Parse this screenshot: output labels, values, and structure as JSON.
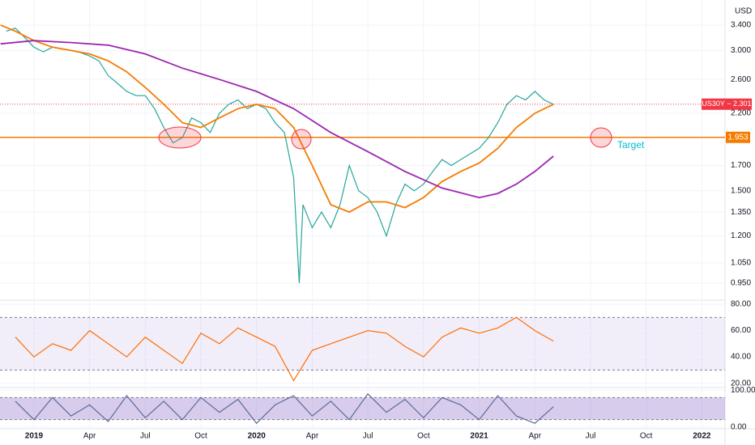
{
  "chart_data": [
    {
      "type": "line",
      "log_scale": true,
      "currency": "USD",
      "ylim": [
        0.877,
        3.85
      ],
      "yticks": [
        {
          "value": 3.4,
          "label": "3.400"
        },
        {
          "value": 3,
          "label": "3.000"
        },
        {
          "value": 2.6,
          "label": "2.600"
        },
        {
          "value": 2.2,
          "label": "2.200"
        },
        {
          "value": 1.7,
          "label": "1.700"
        },
        {
          "value": 1.5,
          "label": "1.500"
        },
        {
          "value": 1.35,
          "label": "1.350"
        },
        {
          "value": 1.2,
          "label": "1.200"
        },
        {
          "value": 1.05,
          "label": "1.050"
        },
        {
          "value": 0.95,
          "label": "0.950"
        }
      ],
      "xlim": [
        -1.83,
        37.25
      ],
      "xticks": [
        {
          "value": 0,
          "label": "2019"
        },
        {
          "value": 3,
          "label": "Apr"
        },
        {
          "value": 6,
          "label": "Jul"
        },
        {
          "value": 9,
          "label": "Oct"
        },
        {
          "value": 12,
          "label": "2020"
        },
        {
          "value": 15,
          "label": "Apr"
        },
        {
          "value": 18,
          "label": "Jul"
        },
        {
          "value": 21,
          "label": "Oct"
        },
        {
          "value": 24,
          "label": "2021"
        },
        {
          "value": 27,
          "label": "Apr"
        },
        {
          "value": 30,
          "label": "Jul"
        },
        {
          "value": 33,
          "label": "Oct"
        },
        {
          "value": 36,
          "label": "2022"
        }
      ],
      "series": [
        {
          "color": "#26a69a",
          "x": [
            -1.5,
            -1,
            -0.5,
            0,
            0.5,
            1,
            1.5,
            2,
            2.5,
            3,
            3.5,
            4,
            4.5,
            5,
            5.5,
            6,
            6.5,
            7,
            7.5,
            8,
            8.5,
            9,
            9.5,
            10,
            10.5,
            11,
            11.5,
            12,
            12.5,
            13,
            13.5,
            14,
            14.3,
            14.5,
            15,
            15.5,
            16,
            16.5,
            17,
            17.5,
            18,
            18.5,
            19,
            19.5,
            20,
            20.5,
            21,
            21.5,
            22,
            22.5,
            23,
            23.5,
            24,
            24.5,
            25,
            25.5,
            26,
            26.5,
            27,
            27.5,
            28
          ],
          "values": [
            3.3,
            3.35,
            3.2,
            3.05,
            2.98,
            3.05,
            3.02,
            3,
            2.97,
            2.92,
            2.85,
            2.65,
            2.55,
            2.45,
            2.4,
            2.4,
            2.25,
            2.05,
            1.9,
            1.95,
            2.15,
            2.1,
            2,
            2.2,
            2.3,
            2.35,
            2.25,
            2.3,
            2.25,
            2.1,
            2,
            1.6,
            0.95,
            1.4,
            1.25,
            1.35,
            1.25,
            1.4,
            1.7,
            1.5,
            1.45,
            1.35,
            1.2,
            1.4,
            1.55,
            1.5,
            1.55,
            1.65,
            1.75,
            1.7,
            1.75,
            1.8,
            1.85,
            1.95,
            2.1,
            2.3,
            2.4,
            2.35,
            2.45,
            2.35,
            2.3
          ]
        },
        {
          "color": "#f57c00",
          "x": [
            -1.8,
            -1,
            0,
            1,
            2,
            3,
            4,
            5,
            6,
            7,
            8,
            9,
            10,
            11,
            12,
            13,
            14,
            15,
            16,
            17,
            18,
            19,
            20,
            21,
            22,
            23,
            24,
            25,
            26,
            27,
            28
          ],
          "values": [
            3.4,
            3.3,
            3.15,
            3.05,
            3,
            2.95,
            2.85,
            2.7,
            2.5,
            2.3,
            2.1,
            2.05,
            2.15,
            2.25,
            2.3,
            2.25,
            2.05,
            1.7,
            1.4,
            1.35,
            1.42,
            1.42,
            1.38,
            1.45,
            1.57,
            1.65,
            1.72,
            1.85,
            2.05,
            2.2,
            2.3
          ]
        },
        {
          "color": "#9c27b0",
          "x": [
            -1.8,
            0,
            2,
            4,
            6,
            8,
            10,
            12,
            14,
            16,
            18,
            20,
            22,
            24,
            25,
            26,
            27,
            28
          ],
          "values": [
            3.1,
            3.15,
            3.12,
            3.08,
            2.95,
            2.75,
            2.6,
            2.45,
            2.25,
            2,
            1.82,
            1.65,
            1.52,
            1.45,
            1.48,
            1.55,
            1.65,
            1.78
          ]
        }
      ],
      "last_price": {
        "value": 2.301,
        "label": "US30Y − 2.301",
        "color": "#f23645"
      },
      "level": {
        "value": 1.953,
        "color": "#f57c00"
      },
      "annotation": "Target"
    },
    {
      "type": "line",
      "ylim": [
        17.3,
        82.5
      ],
      "yticks": [
        {
          "value": 80,
          "label": "80.00"
        },
        {
          "value": 60,
          "label": "60.00"
        },
        {
          "value": 40,
          "label": "40.00"
        },
        {
          "value": 20,
          "label": "20.00"
        }
      ],
      "band": [
        30,
        70
      ],
      "series": [
        {
          "color": "#ff6d00",
          "x": [
            -1,
            0,
            1,
            2,
            3,
            4,
            5,
            6,
            7,
            8,
            9,
            10,
            11,
            12,
            13,
            14,
            15,
            16,
            17,
            18,
            19,
            20,
            21,
            22,
            23,
            24,
            25,
            26,
            27,
            28
          ],
          "values": [
            55,
            40,
            50,
            45,
            60,
            50,
            40,
            55,
            45,
            35,
            58,
            50,
            62,
            55,
            48,
            22,
            45,
            50,
            55,
            60,
            58,
            48,
            40,
            55,
            62,
            58,
            62,
            70,
            60,
            52
          ]
        }
      ]
    },
    {
      "type": "line",
      "ylim": [
        -4.8,
        104.8
      ],
      "yticks": [
        {
          "value": 100,
          "label": "100.00"
        },
        {
          "value": 0,
          "label": "0.00"
        }
      ],
      "band": [
        20,
        80
      ],
      "series": [
        {
          "color": "#5b6b95",
          "x": [
            -1,
            0,
            1,
            2,
            3,
            4,
            5,
            6,
            7,
            8,
            9,
            10,
            11,
            12,
            13,
            14,
            15,
            16,
            17,
            18,
            19,
            20,
            21,
            22,
            23,
            24,
            25,
            26,
            27,
            28
          ],
          "values": [
            70,
            20,
            80,
            30,
            60,
            15,
            85,
            25,
            70,
            20,
            80,
            40,
            75,
            10,
            60,
            85,
            30,
            70,
            20,
            90,
            40,
            75,
            25,
            80,
            60,
            20,
            85,
            30,
            10,
            55
          ]
        }
      ]
    }
  ]
}
